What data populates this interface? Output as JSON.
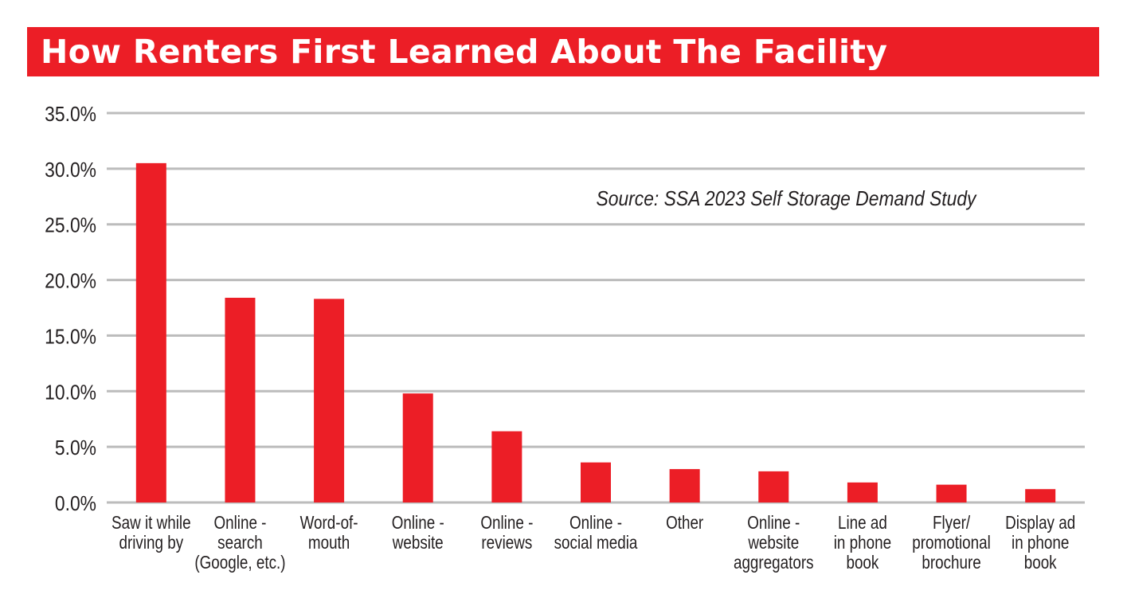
{
  "colors": {
    "bar": "#ec1e26",
    "title_band": "#ec1e26",
    "title_text": "#ffffff",
    "grid": "#bcbcbc",
    "text": "#231f20"
  },
  "chart_data": {
    "type": "bar",
    "title": "How Renters First Learned About The Facility",
    "annotation": "Source: SSA 2023 Self Storage Demand Study",
    "xlabel": "",
    "ylabel": "",
    "ylim": [
      0,
      35
    ],
    "grid": true,
    "legend": "none",
    "y_ticks": [
      0,
      5,
      10,
      15,
      20,
      25,
      30,
      35
    ],
    "y_tick_labels": [
      "0.0%",
      "5.0%",
      "10.0%",
      "15.0%",
      "20.0%",
      "25.0%",
      "30.0%",
      "35.0%"
    ],
    "categories": [
      [
        "Saw it while",
        "driving by"
      ],
      [
        "Online -",
        "search",
        "(Google, etc.)"
      ],
      [
        "Word-of-",
        "mouth"
      ],
      [
        "Online -",
        "website"
      ],
      [
        "Online -",
        "reviews"
      ],
      [
        "Online -",
        "social media"
      ],
      [
        "Other"
      ],
      [
        "Online -",
        "website",
        "aggregators"
      ],
      [
        "Line ad",
        "in phone",
        "book"
      ],
      [
        "Flyer/",
        "promotional",
        "brochure"
      ],
      [
        "Display ad",
        "in phone",
        "book"
      ]
    ],
    "values": [
      30.5,
      18.4,
      18.3,
      9.8,
      6.4,
      3.6,
      3.0,
      2.8,
      1.8,
      1.6,
      1.2
    ],
    "unit": "%"
  }
}
